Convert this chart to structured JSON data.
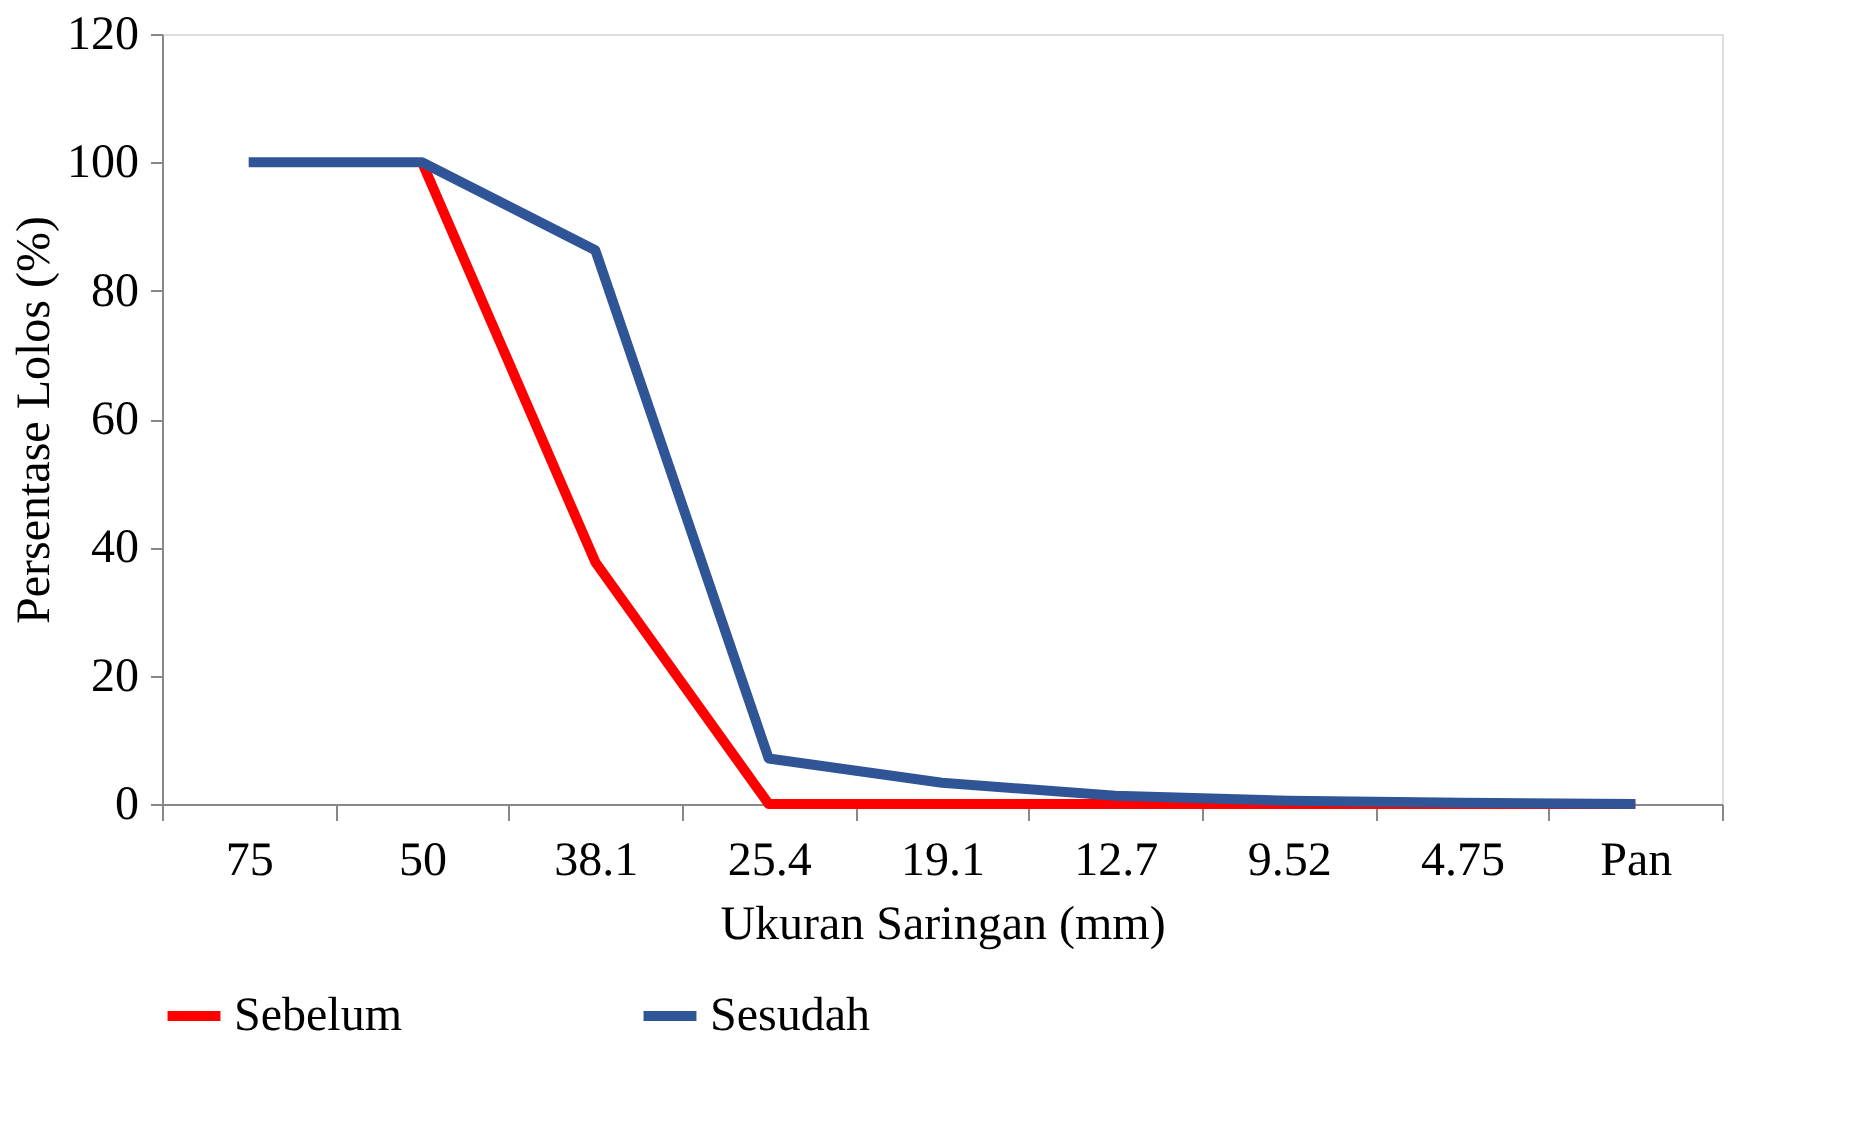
{
  "chart_data": {
    "type": "line",
    "xlabel": "Ukuran Saringan (mm)",
    "ylabel": "Persentase Lolos (%)",
    "categories": [
      "75",
      "50",
      "38.1",
      "25.4",
      "19.1",
      "12.7",
      "9.52",
      "4.75",
      "Pan"
    ],
    "series": [
      {
        "name": "Sebelum",
        "color": "#ff0000",
        "values": [
          null,
          100,
          37.7,
          0,
          0,
          0,
          0,
          0,
          0
        ]
      },
      {
        "name": "Sesudah",
        "color": "#2f5597",
        "values": [
          100,
          100,
          86.3,
          7.1,
          3.3,
          1.3,
          0.5,
          0.2,
          0
        ]
      }
    ],
    "ylim": [
      0,
      120
    ],
    "yticks": [
      0,
      20,
      40,
      60,
      80,
      100,
      120
    ],
    "grid": false,
    "legend": "bottom",
    "marker": "none",
    "line_style": "solid"
  }
}
